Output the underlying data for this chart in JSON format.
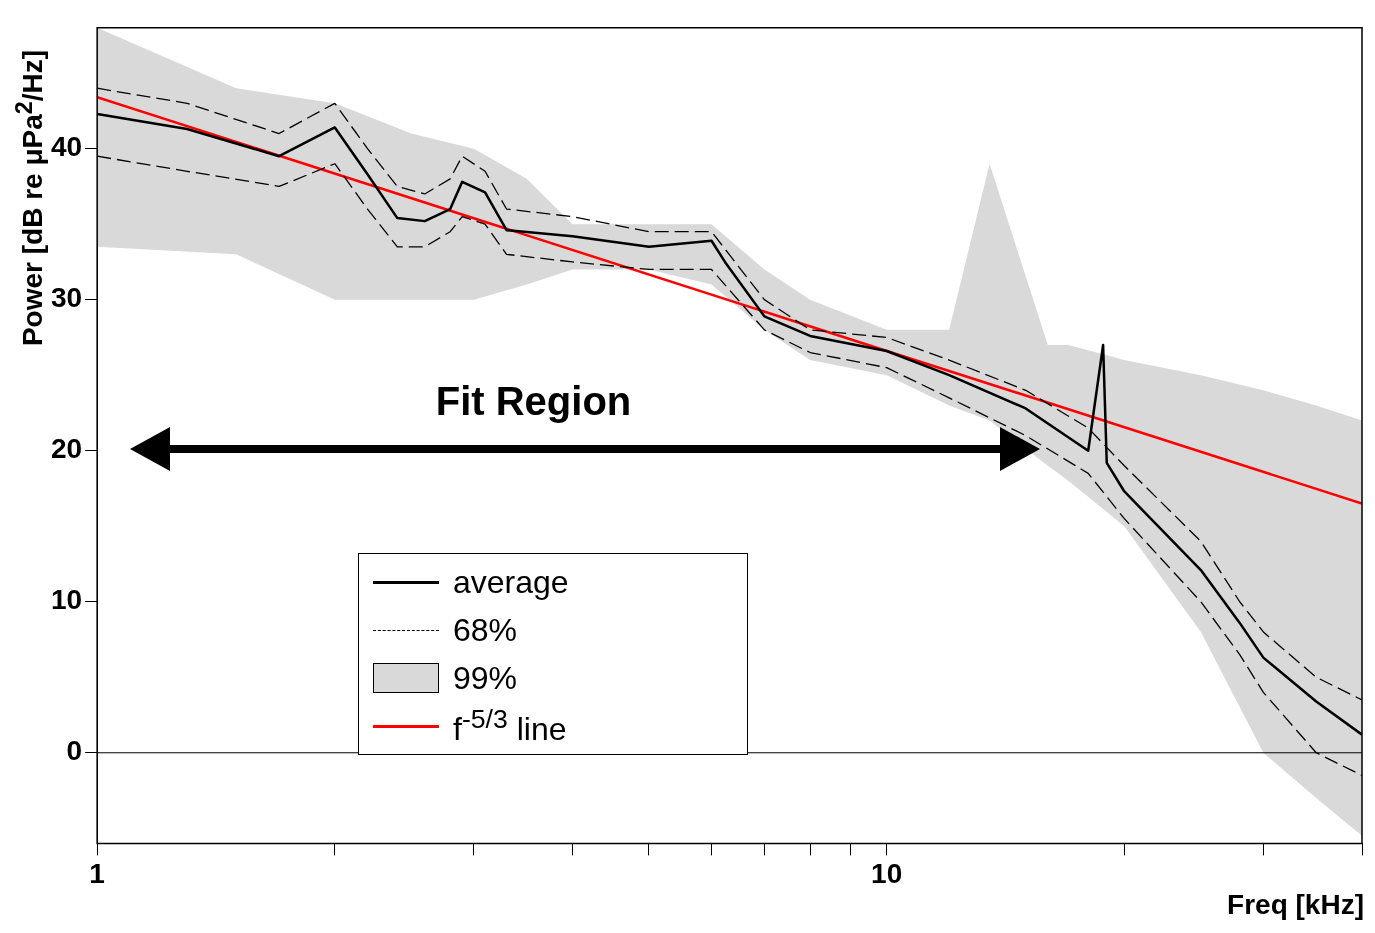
{
  "chart_data": {
    "type": "line",
    "xlabel": "Freq [kHz]",
    "ylabel": "Power [dB re μPa$^{2}$/Hz]",
    "log": "x",
    "xlim": [
      1,
      40
    ],
    "ylim": [
      -6,
      48
    ],
    "xticks": [
      1,
      {
        "value": 2,
        "label": null
      },
      {
        "value": 3,
        "label": null
      },
      {
        "value": 4,
        "label": null
      },
      {
        "value": 5,
        "label": null
      },
      {
        "value": 6,
        "label": null
      },
      {
        "value": 7,
        "label": null
      },
      {
        "value": 8,
        "label": null
      },
      {
        "value": 9,
        "label": null
      },
      10,
      {
        "value": 20,
        "label": null
      },
      {
        "value": 30,
        "label": null
      },
      {
        "value": 40,
        "label": null
      }
    ],
    "yticks": [
      0,
      10,
      20,
      30,
      40
    ],
    "grid": false,
    "legend": "bottom left",
    "annotations": [
      "Fit Region"
    ],
    "ref_lines": [
      {
        "axis": "y",
        "value": 0,
        "color": "#000000"
      }
    ],
    "series": [
      {
        "name": "average",
        "color": "#000000",
        "x": [
          1,
          1.3,
          1.7,
          2,
          2.2,
          2.4,
          2.6,
          2.8,
          2.9,
          3.1,
          3.3,
          4,
          5,
          6,
          6.24,
          7,
          8,
          10,
          12,
          15,
          18,
          18.8,
          19,
          20,
          25,
          28,
          30,
          35,
          40
        ],
        "values": [
          42.3,
          41.3,
          39.5,
          41.4,
          38.3,
          35.4,
          35.2,
          36,
          37.8,
          37.1,
          34.6,
          34.2,
          33.5,
          33.9,
          32.5,
          28.9,
          27.6,
          26.6,
          25,
          22.8,
          20,
          27,
          19.2,
          17.3,
          12.1,
          8.6,
          6.3,
          3.4,
          1.2
        ]
      },
      {
        "name": "68%",
        "line_style": "dashed",
        "color": "#000000",
        "x": [
          1,
          1.3,
          1.7,
          2,
          2.2,
          2.4,
          2.6,
          2.8,
          2.9,
          3.1,
          3.3,
          4,
          5,
          6,
          7,
          8,
          10,
          12,
          15,
          18,
          20,
          25,
          28,
          30,
          35,
          40
        ],
        "values": [
          44,
          43,
          41,
          43,
          40,
          37.5,
          37,
          38,
          39.5,
          38.5,
          36,
          35.5,
          34.5,
          34.5,
          30,
          28,
          27.5,
          26,
          24,
          21.5,
          19,
          14,
          10,
          8,
          5,
          3.5
        ]
      },
      {
        "line_style": "dashed",
        "color": "#000000",
        "x": [
          1,
          1.3,
          1.7,
          2,
          2.2,
          2.4,
          2.6,
          2.8,
          2.9,
          3.1,
          3.3,
          4,
          5,
          6,
          7,
          8,
          10,
          12,
          15,
          18,
          20,
          25,
          28,
          30,
          35,
          40
        ],
        "values": [
          39.5,
          38.5,
          37.5,
          39,
          36,
          33.5,
          33.5,
          34.5,
          35.5,
          35,
          33,
          32.5,
          32,
          32,
          28,
          26.5,
          25.5,
          23.5,
          21,
          18.5,
          15.5,
          10,
          6.5,
          4,
          0,
          -1.5
        ]
      },
      {
        "name": "99%",
        "type": "area",
        "color": "#d9d9d9",
        "x": [
          1,
          1.5,
          2,
          2.5,
          3,
          3.5,
          4,
          5,
          6,
          7,
          8,
          10,
          12,
          13.5,
          16,
          17,
          20,
          25,
          30,
          35,
          40
        ],
        "values": [
          null,
          null,
          null,
          null,
          null,
          null,
          null,
          null,
          null,
          null,
          null,
          null,
          null,
          null,
          null,
          null,
          null,
          null,
          null,
          null,
          null
        ],
        "lower": [
          33.5,
          33,
          30,
          30,
          30,
          31,
          32,
          32,
          31,
          28,
          26,
          25,
          23,
          22,
          19,
          18,
          15,
          8,
          0,
          -3,
          -5.5
        ],
        "upper": [
          48,
          44,
          43,
          41,
          40,
          38,
          35,
          35,
          35,
          32,
          30,
          28,
          28,
          39,
          27,
          27,
          26,
          25,
          24,
          23,
          22
        ]
      },
      {
        "name": "f$^{-5/3}$ line",
        "color": "#ff0000",
        "x": [
          1,
          40
        ],
        "values": [
          43.4,
          16.5
        ]
      }
    ]
  }
}
